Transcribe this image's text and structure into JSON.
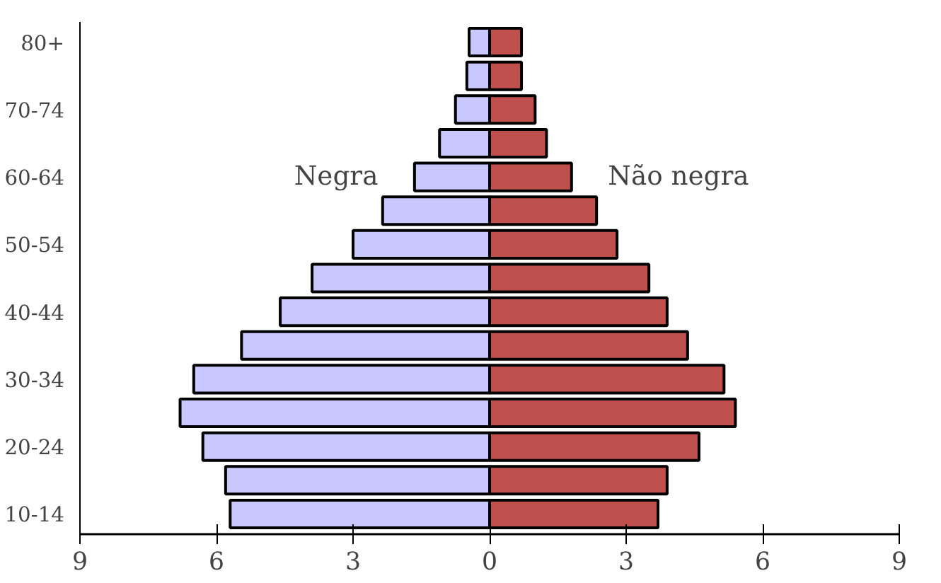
{
  "chart_data": {
    "type": "bar",
    "orientation": "horizontal",
    "stacked": true,
    "categories": [
      "80+",
      null,
      "70-74",
      null,
      "60-64",
      null,
      "50-54",
      null,
      "40-44",
      null,
      "30-34",
      null,
      "20-24",
      null,
      "10-14"
    ],
    "xlim": [
      -9,
      9
    ],
    "xticks": [
      {
        "value": -9,
        "label": "9"
      },
      {
        "value": -6,
        "label": "6"
      },
      {
        "value": -3,
        "label": "3"
      },
      0,
      3,
      6,
      9
    ],
    "series": [
      {
        "name": "Negra",
        "color": "#c8c8ff",
        "values": [
          -0.45,
          -0.5,
          -0.75,
          -1.1,
          -1.65,
          -2.35,
          -3.0,
          -3.9,
          -4.6,
          -5.45,
          -6.5,
          -6.8,
          -6.3,
          -5.8,
          -5.7
        ]
      },
      {
        "name": "Não negra",
        "color": "#c0504d",
        "values": [
          0.7,
          0.7,
          1.0,
          1.25,
          1.8,
          2.35,
          2.8,
          3.5,
          3.9,
          4.35,
          5.15,
          5.4,
          4.6,
          3.9,
          3.7
        ]
      }
    ]
  }
}
